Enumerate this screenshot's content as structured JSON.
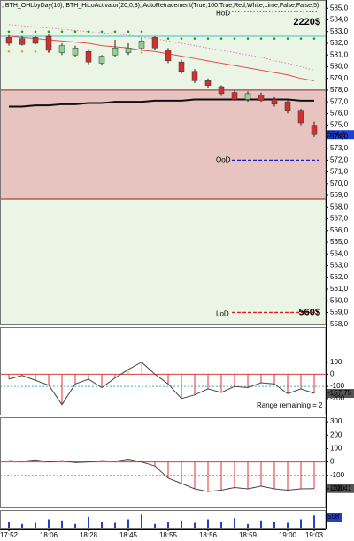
{
  "chart_data": [
    {
      "type": "candlestick",
      "title": ", BTH_OHLbyDay(10), BTH_HiLoActivator(20,0,3), AutoRetracement(True,100,True,Red,White,Lime,False,False,5)",
      "categories": [
        "17:52",
        null,
        null,
        "18:06",
        null,
        null,
        "18:28",
        null,
        null,
        "18:45",
        null,
        null,
        "18:55",
        null,
        null,
        "18:56",
        null,
        null,
        "18:59",
        null,
        null,
        "19:00",
        null,
        "19:03"
      ],
      "open": [
        582.5,
        582.4,
        582.5,
        582.6,
        581.2,
        581.0,
        581.3,
        580.3,
        581.0,
        581.2,
        581.6,
        582.5,
        581.4,
        580.4,
        579.6,
        578.8,
        578.3,
        577.8,
        577.2,
        577.6,
        577.2,
        577.0,
        576.2,
        575.0
      ],
      "high": [
        582.7,
        582.6,
        582.6,
        582.8,
        582.0,
        581.8,
        581.5,
        581.0,
        582.3,
        582.0,
        582.5,
        582.6,
        581.6,
        580.6,
        579.8,
        579.0,
        578.4,
        578.0,
        577.9,
        577.8,
        577.4,
        577.2,
        576.4,
        575.3
      ],
      "low": [
        581.8,
        581.8,
        581.9,
        581.2,
        581.0,
        580.8,
        580.2,
        580.1,
        580.8,
        581.0,
        581.4,
        581.4,
        580.3,
        579.4,
        578.6,
        578.2,
        577.5,
        577.1,
        577.0,
        577.0,
        576.6,
        576.0,
        575.0,
        574.0
      ],
      "close": [
        582.0,
        581.9,
        582.0,
        581.4,
        581.8,
        581.6,
        580.4,
        580.9,
        581.6,
        581.6,
        582.2,
        581.6,
        580.5,
        579.6,
        578.8,
        578.4,
        577.7,
        577.2,
        577.7,
        577.1,
        576.8,
        576.2,
        575.2,
        574.2
      ],
      "up_color": "#90d090",
      "down_color": "#d03030",
      "series": [
        {
          "color": "#111111",
          "style": "solid",
          "values": [
            576.6,
            576.6,
            576.7,
            576.7,
            576.8,
            576.8,
            576.9,
            576.9,
            577.0,
            577.0,
            577.0,
            577.1,
            577.1,
            577.1,
            577.2,
            577.2,
            577.2,
            577.2,
            577.2,
            577.2,
            577.2,
            577.2,
            577.1,
            577.1
          ]
        },
        {
          "color": "#e05050",
          "style": "solid",
          "values": [
            582.6,
            582.5,
            582.4,
            582.3,
            582.2,
            582.1,
            582.0,
            581.8,
            581.7,
            581.6,
            581.4,
            581.3,
            581.1,
            580.9,
            580.7,
            580.5,
            580.3,
            580.1,
            579.9,
            579.7,
            579.5,
            579.3,
            579.0,
            578.8
          ]
        },
        {
          "color": "#e080c0",
          "style": "dotted",
          "values": [
            583.6,
            583.5,
            583.4,
            583.3,
            583.2,
            583.1,
            583.0,
            582.9,
            582.8,
            582.7,
            582.5,
            582.4,
            582.2,
            582.0,
            581.8,
            581.6,
            581.4,
            581.2,
            581.0,
            580.8,
            580.5,
            580.3,
            580.0,
            579.7
          ]
        },
        {
          "color": "#20a020",
          "style": "dots",
          "values": [
            583.0,
            583.0,
            583.0,
            583.0,
            583.0,
            583.0,
            583.0,
            583.0,
            583.0,
            583.0,
            583.0,
            null,
            582.4,
            582.4,
            582.4,
            582.4,
            582.4,
            582.4,
            582.4,
            582.4,
            582.4,
            582.4,
            582.4,
            582.4
          ]
        },
        {
          "color": "#f0a020",
          "style": "dots",
          "values": [
            581.3,
            581.3,
            581.3,
            581.3,
            null,
            null,
            null,
            null,
            null,
            581.2,
            581.2,
            null,
            null,
            null,
            null,
            null,
            null,
            null,
            null,
            null,
            null,
            null,
            null,
            null
          ]
        }
      ],
      "zones": [
        {
          "from": 578.0,
          "to": 585.7,
          "color": "#eaf5e6"
        },
        {
          "from": 568.7,
          "to": 578.0,
          "color": "#e8c4c0"
        },
        {
          "from": 557.9,
          "to": 568.7,
          "color": "#eaf5e6"
        }
      ],
      "hlines": [
        {
          "value": 582.6,
          "color": "#40c0c0"
        },
        {
          "value": 578.0,
          "color": "#8a2020"
        },
        {
          "value": 568.7,
          "color": "#8a2020"
        }
      ],
      "levels": [
        {
          "name": "HoD",
          "value": 584.7,
          "color": "#20a020",
          "style": "dotted",
          "note": "2220$"
        },
        {
          "name": "OoD",
          "value": 572.0,
          "color": "#2020c0",
          "style": "dashed"
        },
        {
          "name": "LoD",
          "value": 559.0,
          "color": "#e02020",
          "style": "dashed",
          "note": "560$"
        }
      ],
      "last_price": {
        "value": 574.2,
        "label": "574,2"
      },
      "ylim": [
        557.9,
        585.7
      ],
      "yticks": [
        {
          "value": 558,
          "label": "558,0"
        },
        {
          "value": 559,
          "label": "559,0"
        },
        {
          "value": 560,
          "label": "560,0"
        },
        {
          "value": 561,
          "label": "561,0"
        },
        {
          "value": 562,
          "label": "562,0"
        },
        {
          "value": 563,
          "label": "563,0"
        },
        {
          "value": 564,
          "label": "564,0"
        },
        {
          "value": 565,
          "label": "565,0"
        },
        {
          "value": 566,
          "label": "566,0"
        },
        {
          "value": 567,
          "label": "567,0"
        },
        {
          "value": 568,
          "label": "568,0"
        },
        {
          "value": 569,
          "label": "569,0"
        },
        {
          "value": 570,
          "label": "570,0"
        },
        {
          "value": 571,
          "label": "571,0"
        },
        {
          "value": 572,
          "label": "572,0"
        },
        {
          "value": 573,
          "label": "573,0"
        },
        {
          "value": 574,
          "label": "574,0"
        },
        {
          "value": 575,
          "label": "575,0"
        },
        {
          "value": 576,
          "label": "576,0"
        },
        {
          "value": 577,
          "label": "577,0"
        },
        {
          "value": 578,
          "label": "578,0"
        },
        {
          "value": 579,
          "label": "579,0"
        },
        {
          "value": 580,
          "label": "580,0"
        },
        {
          "value": 581,
          "label": "581,0"
        },
        {
          "value": 582,
          "label": "582,0"
        },
        {
          "value": 583,
          "label": "583,0"
        },
        {
          "value": 584,
          "label": "584,0"
        },
        {
          "value": 585,
          "label": "585,0"
        }
      ]
    },
    {
      "type": "line",
      "histogram": true,
      "color": "#444444",
      "pos_color": "#f0a020",
      "neg_color": "#e03030",
      "values": [
        -40,
        -10,
        -50,
        -90,
        -250,
        -80,
        -40,
        -110,
        -30,
        40,
        100,
        0,
        -80,
        -200,
        -170,
        -120,
        -150,
        -100,
        -110,
        -70,
        -80,
        -160,
        -120,
        -157.75
      ],
      "last": {
        "value": -157.75,
        "label": "-157,75"
      },
      "annotation": "Range remaining = 2",
      "levels": [
        {
          "value": 0,
          "color": "#d04040"
        },
        {
          "value": -100,
          "color": "#40b0c0"
        }
      ],
      "ylim": [
        -340,
        390
      ],
      "yticks": [
        100,
        0,
        -100,
        -200
      ]
    },
    {
      "type": "line",
      "histogram": true,
      "color": "#444444",
      "pos_color": "#f0a020",
      "neg_color": "#e03030",
      "values": [
        10,
        5,
        15,
        0,
        10,
        -5,
        0,
        10,
        5,
        20,
        0,
        -30,
        -120,
        -160,
        -200,
        -220,
        -210,
        -190,
        -200,
        -180,
        -200,
        -210,
        -200,
        -198.41
      ],
      "last": {
        "value": -198.41,
        "label": "-198,41"
      },
      "levels": [
        {
          "value": 0,
          "color": "#d04040"
        },
        {
          "value": -100,
          "color": "#40b0c0"
        }
      ],
      "ylim": [
        -345,
        333
      ],
      "yticks": [
        300,
        200,
        100,
        0,
        -100,
        -200
      ]
    },
    {
      "type": "bar",
      "color": "#2040d0",
      "values": [
        300,
        200,
        250,
        400,
        350,
        200,
        500,
        300,
        250,
        400,
        600,
        200,
        300,
        350,
        250,
        400,
        300,
        450,
        200,
        350,
        300,
        250,
        400,
        558
      ],
      "ylim": [
        0,
        800
      ]
    }
  ]
}
